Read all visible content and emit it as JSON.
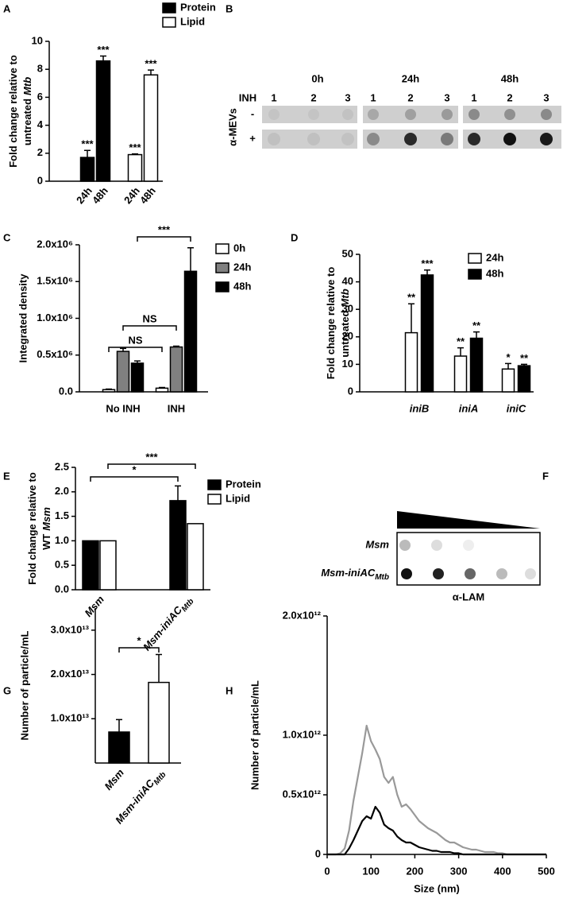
{
  "chart_data": [
    {
      "panel": "A",
      "type": "bar",
      "ylabel": {
        "lines": [
          "Fold change relative to",
          "untreated"
        ],
        "italic": "Mtb"
      },
      "categories": [
        "24h",
        "48h",
        "24h",
        "48h"
      ],
      "series": [
        {
          "name": "Protein",
          "color": "#000000",
          "values": [
            1.7,
            8.6,
            null,
            null
          ],
          "errors": [
            0.5,
            0.35,
            null,
            null
          ],
          "stars": [
            "***",
            "***",
            null,
            null
          ]
        },
        {
          "name": "Lipid",
          "color": "#ffffff",
          "values": [
            null,
            null,
            1.9,
            7.6
          ],
          "errors": [
            null,
            null,
            0.05,
            0.35
          ],
          "stars": [
            null,
            null,
            "***",
            "***"
          ]
        }
      ],
      "ylim": [
        0,
        10
      ],
      "yticks": [
        0,
        2,
        4,
        6,
        8,
        10
      ],
      "legend": true
    },
    {
      "panel": "C",
      "type": "bar",
      "ylabel": "Integrated density",
      "categories": [
        "No INH",
        "INH"
      ],
      "series": [
        {
          "name": "0h",
          "color": "#ffffff",
          "values": [
            30000,
            50000
          ],
          "errors": [
            8000,
            10000
          ]
        },
        {
          "name": "24h",
          "color": "#808080",
          "values": [
            550000,
            610000
          ],
          "errors": [
            40000,
            12000
          ]
        },
        {
          "name": "48h",
          "color": "#000000",
          "values": [
            390000,
            1640000
          ],
          "errors": [
            30000,
            320000
          ]
        }
      ],
      "ylim": [
        0,
        2000000
      ],
      "yticks": [
        {
          "value": 0,
          "label": "0.0"
        },
        {
          "value": 500000,
          "label": "0.5x10⁶"
        },
        {
          "value": 1000000,
          "label": "1.0x10⁶"
        },
        {
          "value": 1500000,
          "label": "1.5x10⁶"
        },
        {
          "value": 2000000,
          "label": "2.0x10⁶"
        }
      ],
      "brackets": [
        "NS",
        "NS",
        "***"
      ],
      "legend": true
    },
    {
      "panel": "D",
      "type": "bar",
      "ylabel": {
        "lines": [
          "Fold change relative to",
          "untreated"
        ],
        "italic": "Mtb"
      },
      "categories": [
        "iniB",
        "iniA",
        "iniC"
      ],
      "category_style": "italic",
      "series": [
        {
          "name": "24h",
          "color": "#ffffff",
          "values": [
            21.5,
            13,
            8.3
          ],
          "errors": [
            10.5,
            3,
            2
          ],
          "stars": [
            "**",
            "**",
            "*"
          ]
        },
        {
          "name": "48h",
          "color": "#000000",
          "values": [
            42.5,
            19.5,
            9.5
          ],
          "errors": [
            1.8,
            2.3,
            0.5
          ],
          "stars": [
            "***",
            "**",
            "**"
          ]
        }
      ],
      "ylim": [
        0,
        50
      ],
      "yticks": [
        0,
        10,
        20,
        30,
        40,
        50
      ],
      "legend": true
    },
    {
      "panel": "E",
      "type": "bar",
      "ylabel": {
        "lines": [
          "Fold change relative to",
          "WT"
        ],
        "italic": "Msm"
      },
      "categories": [
        "Msm",
        "Msm-iniAC"
      ],
      "category_subscripts": [
        null,
        "Mtb"
      ],
      "category_style": "italic",
      "series": [
        {
          "name": "Protein",
          "color": "#000000",
          "values": [
            1,
            1.82
          ],
          "errors": [
            null,
            0.3
          ]
        },
        {
          "name": "Lipid",
          "color": "#ffffff",
          "values": [
            1,
            1.35
          ],
          "errors": [
            null,
            null
          ]
        }
      ],
      "ylim": [
        0,
        2.5
      ],
      "yticks": [
        {
          "value": 0,
          "label": "0.0"
        },
        0.5,
        {
          "value": 1,
          "label": "1.0"
        },
        1.5,
        {
          "value": 2,
          "label": "2.0"
        },
        2.5
      ],
      "brackets": [
        "*",
        "***"
      ],
      "legend": true
    },
    {
      "panel": "G",
      "type": "bar",
      "ylabel": "Number of particle/mL",
      "categories": [
        "Msm",
        "Msm-iniAC"
      ],
      "category_subscripts": [
        null,
        "Mtb"
      ],
      "category_style": "italic",
      "values": [
        7000000000000.0,
        18200000000000.0
      ],
      "errors": [
        2800000000000.0,
        6300000000000.0
      ],
      "colors": [
        "#000000",
        "#ffffff"
      ],
      "ylim": [
        0,
        35000000000000.0
      ],
      "yticks": [
        {
          "value": 10000000000000.0,
          "label": "1.0x10¹³"
        },
        {
          "value": 20000000000000.0,
          "label": "2.0x10¹³"
        },
        {
          "value": 30000000000000.0,
          "label": "3.0x10¹³"
        }
      ],
      "brackets": [
        "*"
      ]
    },
    {
      "panel": "H",
      "type": "line",
      "xlabel": "Size (nm)",
      "ylabel": "Number of particle/mL",
      "x": [
        0,
        10,
        20,
        30,
        40,
        50,
        60,
        70,
        80,
        90,
        100,
        110,
        120,
        130,
        140,
        150,
        160,
        170,
        180,
        190,
        200,
        210,
        220,
        230,
        240,
        250,
        260,
        270,
        280,
        290,
        300,
        310,
        320,
        330,
        340,
        350,
        360,
        370,
        380,
        390,
        400,
        410,
        420,
        430,
        440,
        450,
        460,
        470,
        480,
        490,
        500
      ],
      "series": [
        {
          "color": "#999999",
          "values": [
            0,
            0,
            0,
            10000000000.0,
            50000000000.0,
            200000000000.0,
            450000000000.0,
            650000000000.0,
            850000000000.0,
            1080000000000.0,
            950000000000.0,
            880000000000.0,
            800000000000.0,
            650000000000.0,
            600000000000.0,
            650000000000.0,
            500000000000.0,
            400000000000.0,
            420000000000.0,
            380000000000.0,
            330000000000.0,
            280000000000.0,
            250000000000.0,
            220000000000.0,
            200000000000.0,
            180000000000.0,
            150000000000.0,
            120000000000.0,
            100000000000.0,
            100000000000.0,
            80000000000.0,
            60000000000.0,
            50000000000.0,
            40000000000.0,
            40000000000.0,
            30000000000.0,
            20000000000.0,
            20000000000.0,
            20000000000.0,
            10000000000.0,
            10000000000.0,
            0,
            0,
            0,
            0,
            0,
            0,
            0,
            0,
            0,
            0
          ]
        },
        {
          "color": "#000000",
          "values": [
            0,
            0,
            0,
            0,
            0,
            50000000000.0,
            120000000000.0,
            200000000000.0,
            280000000000.0,
            320000000000.0,
            300000000000.0,
            400000000000.0,
            350000000000.0,
            250000000000.0,
            220000000000.0,
            200000000000.0,
            150000000000.0,
            120000000000.0,
            100000000000.0,
            100000000000.0,
            80000000000.0,
            60000000000.0,
            50000000000.0,
            40000000000.0,
            30000000000.0,
            30000000000.0,
            20000000000.0,
            20000000000.0,
            20000000000.0,
            10000000000.0,
            10000000000.0,
            0,
            0,
            0,
            0,
            0,
            0,
            0,
            0,
            0,
            0,
            0,
            0,
            0,
            0,
            0,
            0,
            0,
            0,
            0,
            0
          ]
        }
      ],
      "xlim": [
        0,
        500
      ],
      "xticks": [
        0,
        100,
        200,
        300,
        400,
        500
      ],
      "ylim": [
        0,
        2000000000000.0
      ],
      "yticks": [
        0,
        {
          "value": 500000000000.0,
          "label": "0.5x10¹²"
        },
        {
          "value": 1000000000000.0,
          "label": "1.0x10¹²"
        },
        {
          "value": 2000000000000.0,
          "label": "2.0x10¹²"
        }
      ]
    }
  ],
  "blots": [
    {
      "panel": "B",
      "columns": [
        "0h",
        "24h",
        "48h"
      ],
      "row_header": "INH",
      "lanes": [
        "1",
        "2",
        "3"
      ],
      "rows": [
        "-",
        "+"
      ],
      "antibody": "α-MEVs"
    },
    {
      "panel": "F",
      "rows": [
        "Msm",
        "Msm-iniAC"
      ],
      "row_subscripts": [
        null,
        "Mtb"
      ],
      "antibody": "α-LAM"
    }
  ]
}
